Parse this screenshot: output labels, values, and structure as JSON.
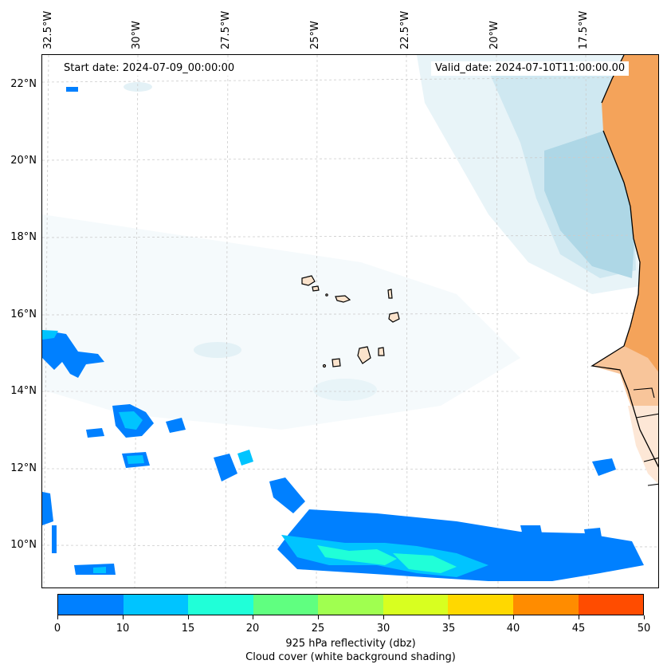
{
  "map": {
    "start_date": "Start date: 2024-07-09_00:00:00",
    "valid_date": "Valid_date: 2024-07-10T11:00:00.00",
    "lon_labels": [
      "32.5°W",
      "30°W",
      "27.5°W",
      "25°W",
      "22.5°W",
      "20°W",
      "17.5°W"
    ],
    "lat_labels": [
      "22°N",
      "20°N",
      "18°N",
      "16°N",
      "14°N",
      "12°N",
      "10°N"
    ],
    "region": "Cape Verde islands and West African coast",
    "colors": {
      "land": "#f4a35a",
      "land_light": "#fbd9bd",
      "cloud": "#aed7e6",
      "coast": "#000000",
      "grid": "#cccccc"
    }
  },
  "colorbar": {
    "title": "925 hPa reflectivity (dbz)",
    "subtitle": "Cloud cover (white background shading)",
    "ticks": [
      "0",
      "10",
      "15",
      "20",
      "25",
      "30",
      "35",
      "40",
      "45",
      "50"
    ],
    "colors": [
      "#0080ff",
      "#00c4ff",
      "#20ffd8",
      "#60ff80",
      "#a0ff50",
      "#d8ff20",
      "#ffd800",
      "#ff8c00",
      "#ff4c00"
    ]
  }
}
